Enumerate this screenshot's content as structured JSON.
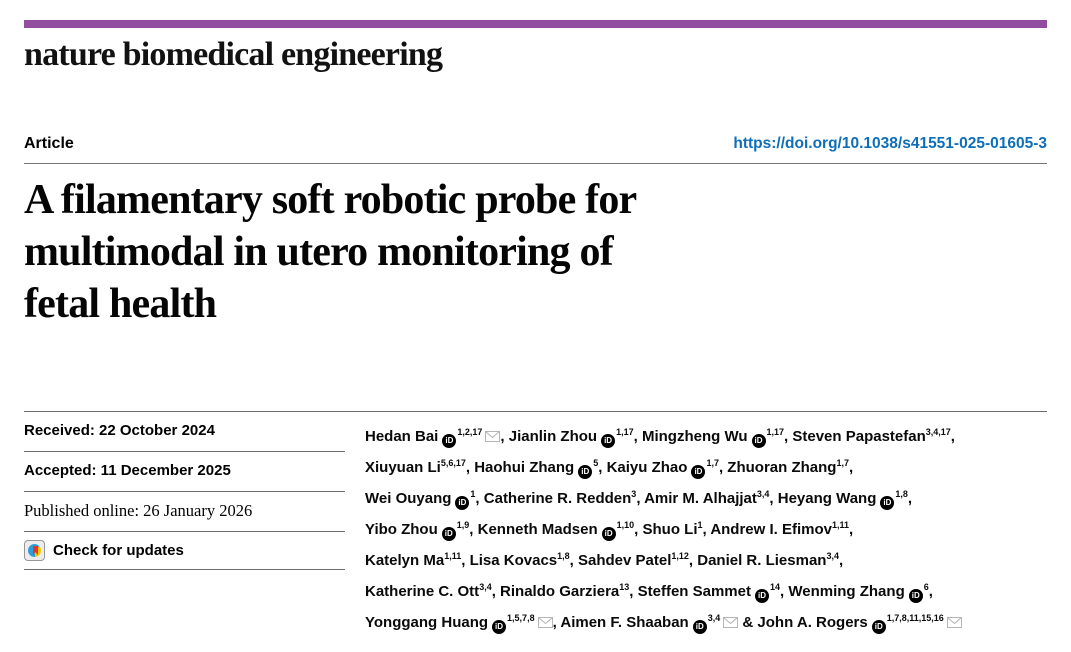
{
  "brand": {
    "masthead": "nature biomedical engineering",
    "bar_color": "#914d9e"
  },
  "header": {
    "article_label": "Article",
    "doi": "https://doi.org/10.1038/s41551-025-01605-3",
    "doi_color": "#0e6eb8"
  },
  "title": {
    "lines": [
      "A filamentary soft robotic probe for",
      "multimodal in utero monitoring of",
      "fetal health"
    ]
  },
  "meta": {
    "received": "Received: 22 October 2024",
    "accepted": "Accepted: 11 December 2025",
    "published": "Published online: 26 January 2026",
    "check_updates": "Check for updates"
  },
  "icons": {
    "orcid_label": "iD",
    "envelope_color": "#b5b5b5",
    "crossmark_blue": "#2d9fd8",
    "crossmark_yellow": "#f6c700",
    "crossmark_red": "#e3342f"
  },
  "authors": {
    "list": [
      {
        "n": "Hedan Bai",
        "o": true,
        "s": "1,2,17",
        "m": true,
        "sep": ", "
      },
      {
        "n": "Jianlin Zhou",
        "o": true,
        "s": "1,17",
        "sep": ", "
      },
      {
        "n": "Mingzheng Wu",
        "o": true,
        "s": "1,17",
        "sep": ", "
      },
      {
        "n": "Steven Papastefan",
        "o": false,
        "s": "3,4,17",
        "sep": ",",
        "br": true
      },
      {
        "n": "Xiuyuan Li",
        "o": false,
        "s": "5,6,17",
        "sep": ", "
      },
      {
        "n": "Haohui Zhang",
        "o": true,
        "s": "5",
        "sep": ", "
      },
      {
        "n": "Kaiyu Zhao",
        "o": true,
        "s": "1,7",
        "sep": ", "
      },
      {
        "n": "Zhuoran Zhang",
        "o": false,
        "s": "1,7",
        "sep": ",",
        "br": true
      },
      {
        "n": "Wei Ouyang",
        "o": true,
        "s": "1",
        "sep": ", "
      },
      {
        "n": "Catherine R. Redden",
        "o": false,
        "s": "3",
        "sep": ", "
      },
      {
        "n": "Amir M. Alhajjat",
        "o": false,
        "s": "3,4",
        "sep": ", "
      },
      {
        "n": "Heyang Wang",
        "o": true,
        "s": "1,8",
        "sep": ",",
        "br": true
      },
      {
        "n": "Yibo Zhou",
        "o": true,
        "s": "1,9",
        "sep": ", "
      },
      {
        "n": "Kenneth Madsen",
        "o": true,
        "s": "1,10",
        "sep": ", "
      },
      {
        "n": "Shuo Li",
        "o": false,
        "s": "1",
        "sep": ", "
      },
      {
        "n": "Andrew I. Efimov",
        "o": false,
        "s": "1,11",
        "sep": ",",
        "br": true
      },
      {
        "n": "Katelyn Ma",
        "o": false,
        "s": "1,11",
        "sep": ", "
      },
      {
        "n": "Lisa Kovacs",
        "o": false,
        "s": "1,8",
        "sep": ", "
      },
      {
        "n": "Sahdev Patel",
        "o": false,
        "s": "1,12",
        "sep": ", "
      },
      {
        "n": "Daniel R. Liesman",
        "o": false,
        "s": "3,4",
        "sep": ",",
        "br": true
      },
      {
        "n": "Katherine C. Ott",
        "o": false,
        "s": "3,4",
        "sep": ", "
      },
      {
        "n": "Rinaldo Garziera",
        "o": false,
        "s": "13",
        "sep": ", "
      },
      {
        "n": "Steffen Sammet",
        "o": true,
        "s": "14",
        "sep": ", "
      },
      {
        "n": "Wenming Zhang",
        "o": true,
        "s": "6",
        "sep": ",",
        "br": true
      },
      {
        "n": "Yonggang Huang",
        "o": true,
        "s": "1,5,7,8",
        "m": true,
        "sep": ", "
      },
      {
        "n": "Aimen F. Shaaban",
        "o": true,
        "s": "3,4",
        "m": true,
        "sep": " & "
      },
      {
        "n": "John A. Rogers",
        "o": true,
        "s": "1,7,8,11,15,16",
        "m": true,
        "sep": ""
      }
    ]
  }
}
